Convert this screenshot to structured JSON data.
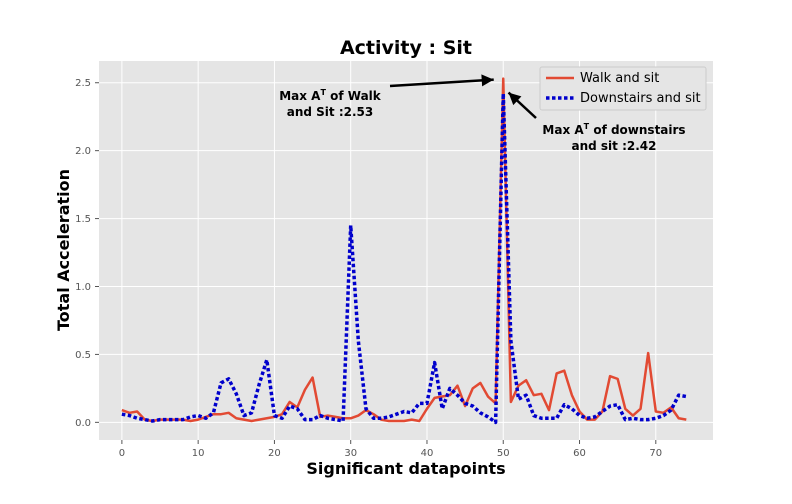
{
  "chart_data": {
    "type": "line",
    "title": "Activity : Sit",
    "xlabel": "Significant datapoints",
    "ylabel": "Total Acceleration",
    "xlim": [
      -3,
      77.5
    ],
    "ylim": [
      -0.13,
      2.66
    ],
    "xticks": [
      0,
      10,
      20,
      30,
      40,
      50,
      60,
      70
    ],
    "yticks": [
      0.0,
      0.5,
      1.0,
      1.5,
      2.0,
      2.5
    ],
    "ytick_labels": [
      "0.0",
      "0.5",
      "1.0",
      "1.5",
      "2.0",
      "2.5"
    ],
    "grid": true,
    "legend_position": "top-right",
    "series": [
      {
        "name": "Walk and sit",
        "color": "#e24a33",
        "style": "solid",
        "x": [
          0,
          1,
          2,
          3,
          4,
          5,
          6,
          7,
          8,
          9,
          10,
          11,
          12,
          13,
          14,
          15,
          16,
          17,
          18,
          19,
          20,
          21,
          22,
          23,
          24,
          25,
          26,
          27,
          28,
          29,
          30,
          31,
          32,
          33,
          34,
          35,
          36,
          37,
          38,
          39,
          40,
          41,
          42,
          43,
          44,
          45,
          46,
          47,
          48,
          49,
          50,
          51,
          52,
          53,
          54,
          55,
          56,
          57,
          58,
          59,
          60,
          61,
          62,
          63,
          64,
          65,
          66,
          67,
          68,
          69,
          70,
          71,
          72,
          73,
          74
        ],
        "values": [
          0.09,
          0.07,
          0.08,
          0.02,
          0.01,
          0.02,
          0.02,
          0.02,
          0.02,
          0.01,
          0.02,
          0.04,
          0.06,
          0.06,
          0.07,
          0.03,
          0.02,
          0.01,
          0.02,
          0.03,
          0.04,
          0.06,
          0.15,
          0.11,
          0.24,
          0.33,
          0.04,
          0.05,
          0.04,
          0.03,
          0.03,
          0.05,
          0.09,
          0.06,
          0.02,
          0.01,
          0.01,
          0.01,
          0.02,
          0.01,
          0.1,
          0.18,
          0.19,
          0.2,
          0.27,
          0.12,
          0.25,
          0.29,
          0.19,
          0.14,
          2.53,
          0.15,
          0.27,
          0.31,
          0.2,
          0.21,
          0.09,
          0.36,
          0.38,
          0.2,
          0.08,
          0.02,
          0.02,
          0.08,
          0.34,
          0.32,
          0.1,
          0.05,
          0.1,
          0.51,
          0.08,
          0.07,
          0.11,
          0.03,
          0.02
        ]
      },
      {
        "name": "Downstairs and sit",
        "color": "#0000cc",
        "style": "dotted",
        "x": [
          0,
          1,
          2,
          3,
          4,
          5,
          6,
          7,
          8,
          9,
          10,
          11,
          12,
          13,
          14,
          15,
          16,
          17,
          18,
          19,
          20,
          21,
          22,
          23,
          24,
          25,
          26,
          27,
          28,
          29,
          30,
          31,
          32,
          33,
          34,
          35,
          36,
          37,
          38,
          39,
          40,
          41,
          42,
          43,
          44,
          45,
          46,
          47,
          48,
          49,
          50,
          51,
          52,
          53,
          54,
          55,
          56,
          57,
          58,
          59,
          60,
          61,
          62,
          63,
          64,
          65,
          66,
          67,
          68,
          69,
          70,
          71,
          72,
          73,
          74
        ],
        "values": [
          0.06,
          0.05,
          0.03,
          0.02,
          0.01,
          0.02,
          0.02,
          0.02,
          0.02,
          0.04,
          0.05,
          0.03,
          0.07,
          0.29,
          0.32,
          0.21,
          0.05,
          0.07,
          0.28,
          0.46,
          0.05,
          0.03,
          0.12,
          0.1,
          0.02,
          0.02,
          0.05,
          0.03,
          0.02,
          0.01,
          1.45,
          0.6,
          0.1,
          0.03,
          0.03,
          0.04,
          0.06,
          0.08,
          0.07,
          0.14,
          0.14,
          0.44,
          0.1,
          0.25,
          0.2,
          0.14,
          0.12,
          0.07,
          0.04,
          0.0,
          2.42,
          0.6,
          0.17,
          0.2,
          0.05,
          0.03,
          0.03,
          0.03,
          0.13,
          0.1,
          0.05,
          0.03,
          0.04,
          0.08,
          0.12,
          0.13,
          0.02,
          0.03,
          0.02,
          0.02,
          0.03,
          0.05,
          0.09,
          0.2,
          0.19
        ]
      }
    ],
    "annotations": [
      {
        "id": "walk",
        "line1": "Max A",
        "sup": "T",
        "line1_rest": " of Walk",
        "line2": "and Sit :2.53",
        "target": [
          49.8,
          2.53
        ]
      },
      {
        "id": "down",
        "line1": "Max A",
        "sup": "T",
        "line1_rest": " of downstairs",
        "line2": "and sit :2.42",
        "target": [
          50.3,
          2.42
        ]
      }
    ]
  }
}
